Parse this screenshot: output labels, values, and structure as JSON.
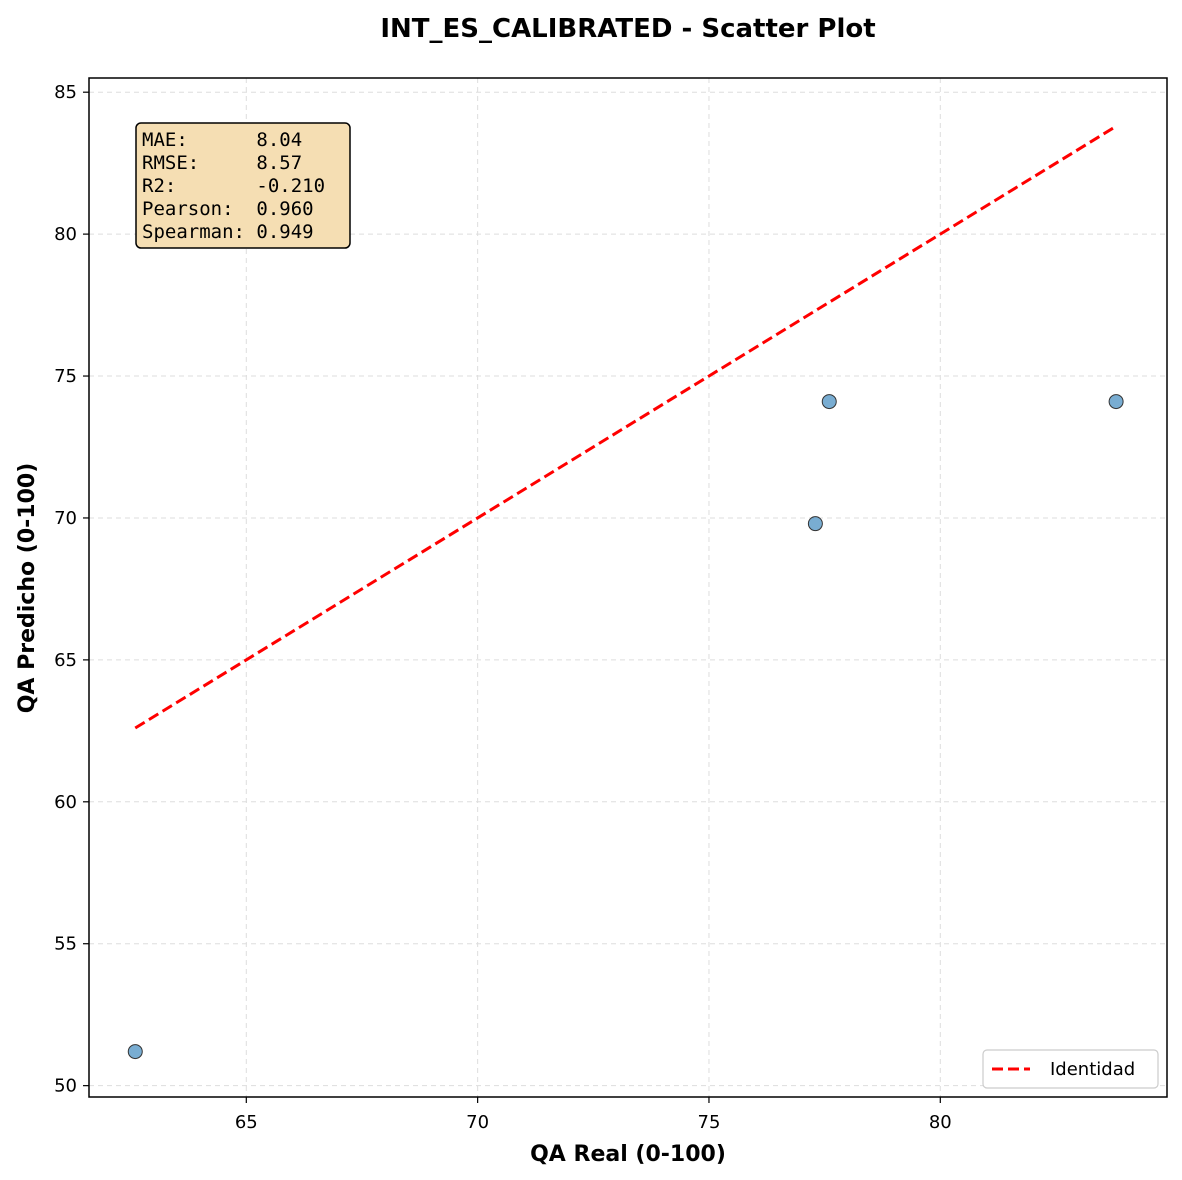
{
  "chart_data": {
    "type": "scatter",
    "title": "INT_ES_CALIBRATED - Scatter Plot",
    "xlabel": "QA Real (0-100)",
    "ylabel": "QA Predicho (0-100)",
    "xlim": [
      61.6,
      84.9
    ],
    "ylim": [
      49.6,
      85.5
    ],
    "xticks": [
      65,
      70,
      75,
      80
    ],
    "yticks": [
      50,
      55,
      60,
      65,
      70,
      75,
      80,
      85
    ],
    "grid": true,
    "legend_position": "lower-right",
    "series": [
      {
        "kind": "points",
        "color": "#1f77b4",
        "x": [
          62.6,
          77.3,
          77.6,
          83.8
        ],
        "y": [
          51.2,
          69.8,
          74.1,
          74.1
        ]
      },
      {
        "kind": "line",
        "name": "Identidad",
        "color": "#ff0000",
        "style": "dashed",
        "x": [
          62.6,
          83.8
        ],
        "y": [
          62.6,
          83.8
        ]
      }
    ],
    "stats_box": {
      "background": "#f5deb3",
      "lines": [
        "MAE:      8.04",
        "RMSE:     8.57",
        "R2:       -0.210",
        "Pearson:  0.960",
        "Spearman: 0.949"
      ]
    }
  }
}
